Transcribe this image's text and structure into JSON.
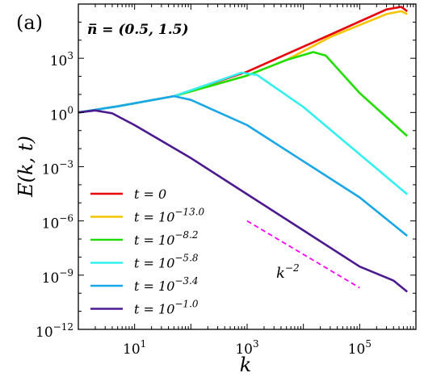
{
  "panel_label": "(a)",
  "param_label": "n̅ = (0.5, 1.5)",
  "chart_data": {
    "type": "line",
    "xlabel": "k",
    "ylabel": "E(k, t)",
    "xscale": "log",
    "yscale": "log",
    "xlim": [
      1,
      1000000
    ],
    "ylim": [
      1e-12,
      1000000.0
    ],
    "xticks": [
      {
        "label": "10",
        "exp": "1",
        "value": 10
      },
      {
        "label": "10",
        "exp": "3",
        "value": 1000
      },
      {
        "label": "10",
        "exp": "5",
        "value": 100000
      }
    ],
    "yticks": [
      {
        "label": "10",
        "exp": "−12",
        "value": 1e-12
      },
      {
        "label": "10",
        "exp": "−9",
        "value": 1e-09
      },
      {
        "label": "10",
        "exp": "−6",
        "value": 1e-06
      },
      {
        "label": "10",
        "exp": "−3",
        "value": 0.001
      },
      {
        "label": "10",
        "exp": "0",
        "value": 1
      },
      {
        "label": "10",
        "exp": "3",
        "value": 1000
      }
    ],
    "grid": false,
    "legend_position": "lower-left",
    "series": [
      {
        "name": "t = 0",
        "name_base": "t = 0",
        "name_exp": "",
        "color": "#e8000b",
        "points": [
          [
            1,
            1
          ],
          [
            5,
            2.2
          ],
          [
            50,
            8
          ],
          [
            1000,
            180
          ],
          [
            30000,
            20000
          ],
          [
            300000,
            500000
          ],
          [
            550000,
            700000
          ],
          [
            700000,
            400000
          ]
        ]
      },
      {
        "name": "t = 10^−13.0",
        "name_base": "t = 10",
        "name_exp": "−13.0",
        "color": "#f5c400",
        "points": [
          [
            1,
            1
          ],
          [
            5,
            2.2
          ],
          [
            50,
            8
          ],
          [
            1000,
            110
          ],
          [
            5000,
            800
          ],
          [
            30000,
            15000
          ],
          [
            300000,
            280000
          ],
          [
            550000,
            400000
          ],
          [
            700000,
            280000
          ]
        ]
      },
      {
        "name": "t = 10^−8.2",
        "name_base": "t = 10",
        "name_exp": "−8.2",
        "color": "#22dd00",
        "points": [
          [
            1,
            1
          ],
          [
            5,
            2.2
          ],
          [
            50,
            8
          ],
          [
            1000,
            110
          ],
          [
            5000,
            800
          ],
          [
            15000,
            2200
          ],
          [
            25000,
            1400
          ],
          [
            100000,
            12
          ],
          [
            700000,
            0.05
          ]
        ]
      },
      {
        "name": "t = 10^−5.8",
        "name_base": "t = 10",
        "name_exp": "−5.8",
        "color": "#33f0ee",
        "points": [
          [
            1,
            1
          ],
          [
            5,
            2.2
          ],
          [
            50,
            8
          ],
          [
            300,
            55
          ],
          [
            800,
            160
          ],
          [
            1500,
            120
          ],
          [
            10000,
            2
          ],
          [
            700000,
            3e-05
          ]
        ]
      },
      {
        "name": "t = 10^−3.4",
        "name_base": "t = 10",
        "name_exp": "−3.4",
        "color": "#1aa7e8",
        "points": [
          [
            1,
            1
          ],
          [
            5,
            2.2
          ],
          [
            30,
            6
          ],
          [
            50,
            8
          ],
          [
            100,
            5
          ],
          [
            1000,
            0.2
          ],
          [
            10000,
            0.002
          ],
          [
            100000,
            2e-05
          ],
          [
            700000,
            1.5e-07
          ]
        ]
      },
      {
        "name": "t = 10^−1.0",
        "name_base": "t = 10",
        "name_exp": "−1.0",
        "color": "#4b1a8f",
        "points": [
          [
            1,
            1
          ],
          [
            2,
            1.3
          ],
          [
            4,
            0.9
          ],
          [
            10,
            0.2
          ],
          [
            100,
            0.003
          ],
          [
            1000,
            3e-05
          ],
          [
            10000,
            3e-07
          ],
          [
            100000,
            3e-09
          ],
          [
            400000,
            5e-10
          ],
          [
            700000,
            1.2e-10
          ]
        ]
      }
    ],
    "reference_line": {
      "label_base": "k",
      "label_exp": "−2",
      "color": "#ff00ff",
      "x": [
        1000,
        100000
      ],
      "y": [
        1e-06,
        2e-10
      ]
    }
  }
}
